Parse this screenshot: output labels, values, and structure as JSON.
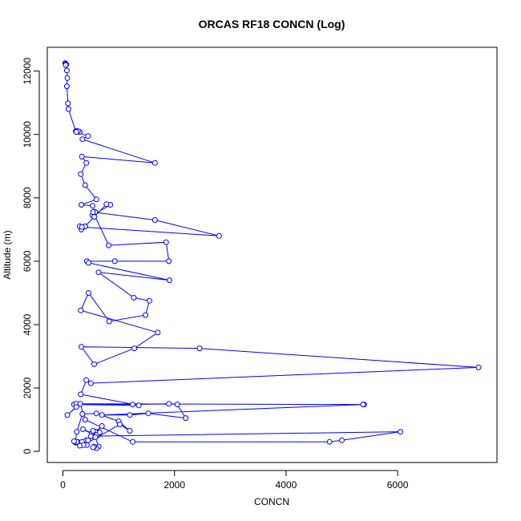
{
  "chart_data": {
    "type": "line",
    "title": "ORCAS RF18 CONCN (Log)",
    "xlabel": "CONCN",
    "ylabel": "Altitude (m)",
    "xlim": [
      -280,
      7780
    ],
    "ylim": [
      -350,
      12750
    ],
    "xticks": [
      0,
      2000,
      4000,
      6000
    ],
    "yticks": [
      0,
      2000,
      4000,
      6000,
      8000,
      10000,
      12000
    ],
    "grid": false,
    "legend": "none",
    "colors": {
      "series": "#0000ff",
      "axes": "#000000",
      "background": "#ffffff"
    },
    "series": [
      {
        "marker": "open-circle",
        "x": [
          40,
          50,
          60,
          50,
          70,
          80,
          70,
          90,
          100,
          230,
          250,
          300,
          270,
          240,
          450,
          350,
          1650,
          340,
          420,
          320,
          400,
          600,
          330,
          530,
          580,
          530,
          850,
          780,
          560,
          400,
          330,
          300,
          400,
          340,
          2800,
          1650,
          540,
          820,
          1850,
          1900,
          930,
          430,
          460,
          1910,
          640,
          1270,
          1550,
          1480,
          830,
          460,
          320,
          1700,
          1280,
          560,
          330,
          2450,
          7450,
          500,
          420,
          320,
          1360,
          200,
          1250,
          1900,
          2050,
          2200,
          1530,
          1200,
          700,
          5400,
          5380,
          240,
          240,
          80,
          310,
          400,
          1250,
          4780,
          5000,
          6050,
          520,
          700,
          580,
          520,
          540,
          620,
          360,
          580,
          600,
          660,
          500,
          420,
          450,
          430,
          260,
          230,
          220,
          250,
          350,
          600,
          1000,
          1200,
          1020,
          370,
          300,
          260,
          250,
          200,
          580,
          640,
          580,
          600,
          560,
          540
        ],
        "y": [
          12250,
          12230,
          12210,
          12190,
          12020,
          11780,
          11520,
          10980,
          10800,
          10100,
          10110,
          10080,
          10100,
          10080,
          9950,
          9850,
          9100,
          9300,
          9100,
          8750,
          8400,
          7950,
          7780,
          7750,
          7550,
          7450,
          7780,
          7800,
          7400,
          7100,
          7000,
          7100,
          7100,
          7080,
          6800,
          7300,
          7550,
          6500,
          6600,
          6000,
          6000,
          6000,
          5950,
          5400,
          5650,
          4850,
          4750,
          4300,
          4100,
          5000,
          4450,
          3750,
          3250,
          2750,
          3300,
          3250,
          2650,
          2150,
          2250,
          1800,
          1450,
          1480,
          1480,
          1500,
          1480,
          1050,
          1200,
          1150,
          1150,
          1480,
          1480,
          1500,
          1400,
          1150,
          1500,
          1000,
          300,
          300,
          350,
          620,
          480,
          800,
          620,
          580,
          650,
          500,
          700,
          500,
          520,
          600,
          480,
          350,
          350,
          200,
          280,
          280,
          300,
          620,
          1180,
          1200,
          950,
          650,
          850,
          200,
          180,
          300,
          300,
          320,
          450,
          150,
          120,
          100,
          150,
          130
        ]
      }
    ]
  }
}
